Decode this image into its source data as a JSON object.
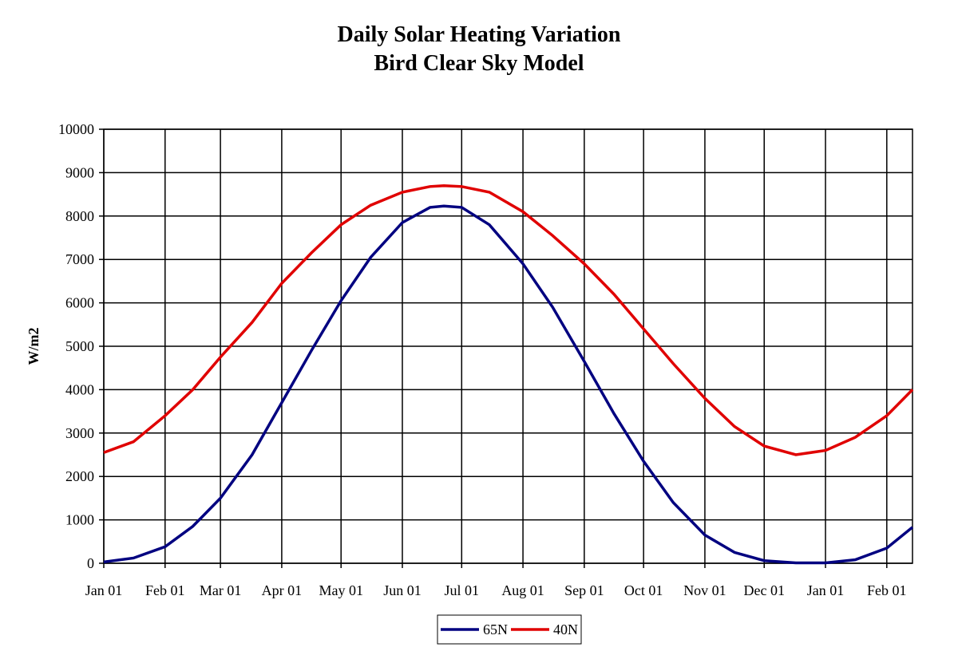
{
  "chart_data": {
    "type": "line",
    "title": "Daily Solar Heating Variation",
    "subtitle": "Bird Clear Sky Model",
    "y_label": "W/m2",
    "x": [
      0,
      15,
      31,
      45,
      59,
      75,
      90,
      105,
      120,
      135,
      151,
      165,
      172,
      181,
      195,
      212,
      227,
      243,
      258,
      273,
      288,
      304,
      319,
      334,
      350,
      365,
      380,
      396,
      409
    ],
    "series": [
      {
        "name": "65N",
        "color": "#000080",
        "values": [
          30,
          120,
          380,
          850,
          1500,
          2500,
          3700,
          4900,
          6050,
          7050,
          7850,
          8200,
          8230,
          8200,
          7800,
          6900,
          5900,
          4650,
          3450,
          2350,
          1400,
          650,
          250,
          60,
          10,
          10,
          80,
          350,
          830
        ]
      },
      {
        "name": "40N",
        "color": "#e00000",
        "values": [
          2550,
          2800,
          3400,
          4000,
          4750,
          5550,
          6450,
          7150,
          7800,
          8250,
          8550,
          8680,
          8700,
          8680,
          8550,
          8100,
          7550,
          6900,
          6200,
          5400,
          4600,
          3800,
          3150,
          2700,
          2500,
          2600,
          2900,
          3400,
          4000
        ]
      }
    ],
    "xlim": [
      0,
      409
    ],
    "xticks": [
      {
        "value": 0,
        "label": "Jan 01"
      },
      {
        "value": 31,
        "label": "Feb 01"
      },
      {
        "value": 59,
        "label": "Mar 01"
      },
      {
        "value": 90,
        "label": "Apr 01"
      },
      {
        "value": 120,
        "label": "May 01"
      },
      {
        "value": 151,
        "label": "Jun 01"
      },
      {
        "value": 181,
        "label": "Jul 01"
      },
      {
        "value": 212,
        "label": "Aug 01"
      },
      {
        "value": 243,
        "label": "Sep 01"
      },
      {
        "value": 273,
        "label": "Oct 01"
      },
      {
        "value": 304,
        "label": "Nov 01"
      },
      {
        "value": 334,
        "label": "Dec 01"
      },
      {
        "value": 365,
        "label": "Jan 01"
      },
      {
        "value": 396,
        "label": "Feb 01"
      }
    ],
    "ylim": [
      0,
      10000
    ],
    "yticks": [
      0,
      1000,
      2000,
      3000,
      4000,
      5000,
      6000,
      7000,
      8000,
      9000,
      10000
    ],
    "grid": true,
    "legend": "bottom"
  }
}
